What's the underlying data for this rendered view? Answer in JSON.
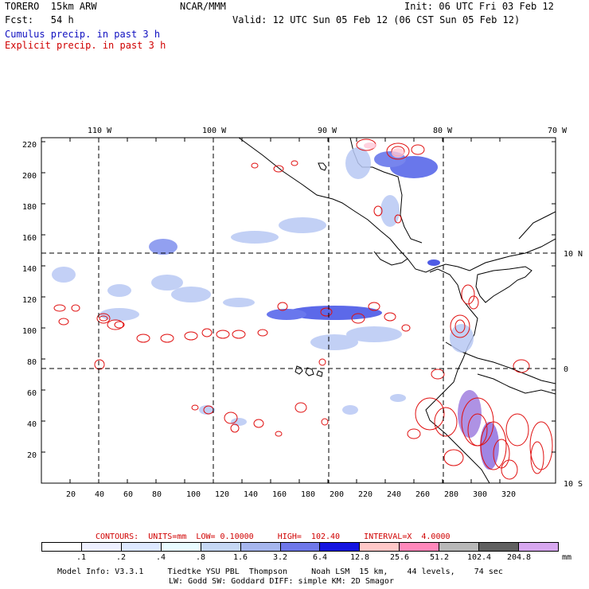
{
  "header": {
    "model": "TORERO  15km ARW",
    "org": "NCAR/MMM",
    "init": "Init: 06 UTC Fri 03 Feb 12",
    "fcst": "Fcst:   54 h",
    "valid": "Valid: 12 UTC Sun 05 Feb 12 (06 CST Sun 05 Feb 12)",
    "line_cumulus": "Cumulus precip. in past 3 h",
    "line_explicit": "Explicit precip. in past 3 h"
  },
  "axes": {
    "top_lon_labels": [
      "110 W",
      "100 W",
      "90 W",
      "80 W",
      "70 W"
    ],
    "right_lat_labels": [
      "10 N",
      "0",
      "10 S"
    ],
    "y_ticks": [
      "220",
      "200",
      "180",
      "160",
      "140",
      "120",
      "100",
      "80",
      "60",
      "40",
      "20"
    ],
    "x_ticks": [
      "20",
      "40",
      "60",
      "80",
      "100",
      "120",
      "140",
      "160",
      "180",
      "200",
      "220",
      "240",
      "260",
      "280",
      "300",
      "320"
    ]
  },
  "contour_info": {
    "text": "CONTOURS:  UNITS=mm  LOW= 0.10000     HIGH=  102.40     INTERVAL=X  4.0000"
  },
  "legend": {
    "labels": [
      ".1",
      ".2",
      ".4",
      ".8",
      "1.6",
      "3.2",
      "6.4",
      "12.8",
      "25.6",
      "51.2",
      "102.4",
      "204.8"
    ],
    "unit": "mm",
    "colors": [
      "#ffffff",
      "#eef0ff",
      "#dde8ff",
      "#e8fbff",
      "#c6d8f5",
      "#a6b6ee",
      "#6f78ea",
      "#1414e0",
      "#ffc8c8",
      "#ff88bb",
      "#b8b8b8",
      "#606060",
      "#d8a8f0"
    ]
  },
  "footer": {
    "line1": "Model Info: V3.3.1     Tiedtke YSU PBL  Thompson     Noah LSM  15 km,    44 levels,    74 sec",
    "line2": "LW: Godd SW: Goddard DIFF: simple KM: 2D Smagor"
  }
}
